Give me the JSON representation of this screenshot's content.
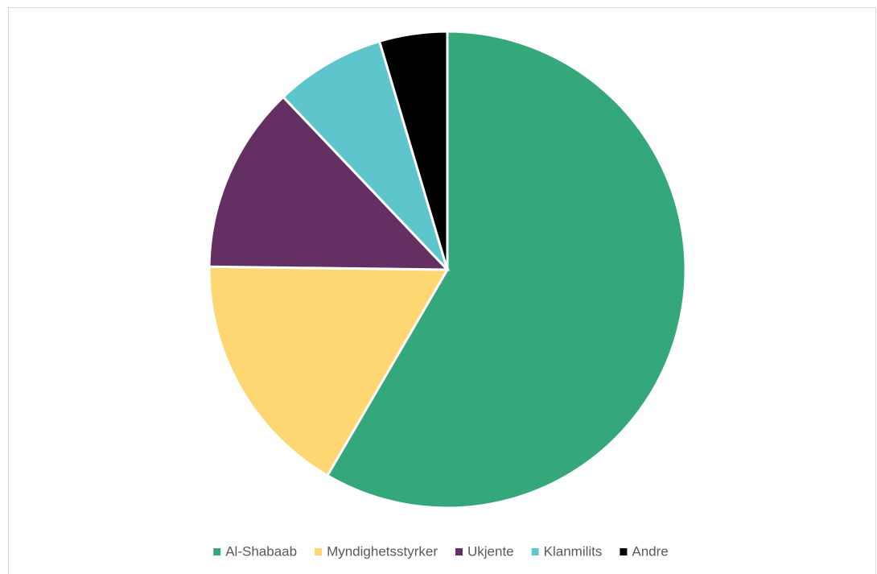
{
  "chart_data": {
    "type": "pie",
    "categories": [
      "Al-Shabaab",
      "Myndighetsstyrker",
      "Ukjente",
      "Klanmilits",
      "Andre"
    ],
    "values": [
      58.4,
      16.8,
      12.7,
      7.5,
      4.6
    ],
    "colors": [
      "#34a87b",
      "#fed772",
      "#642f63",
      "#5fc5cc",
      "#000000"
    ],
    "legend": "bottom"
  }
}
